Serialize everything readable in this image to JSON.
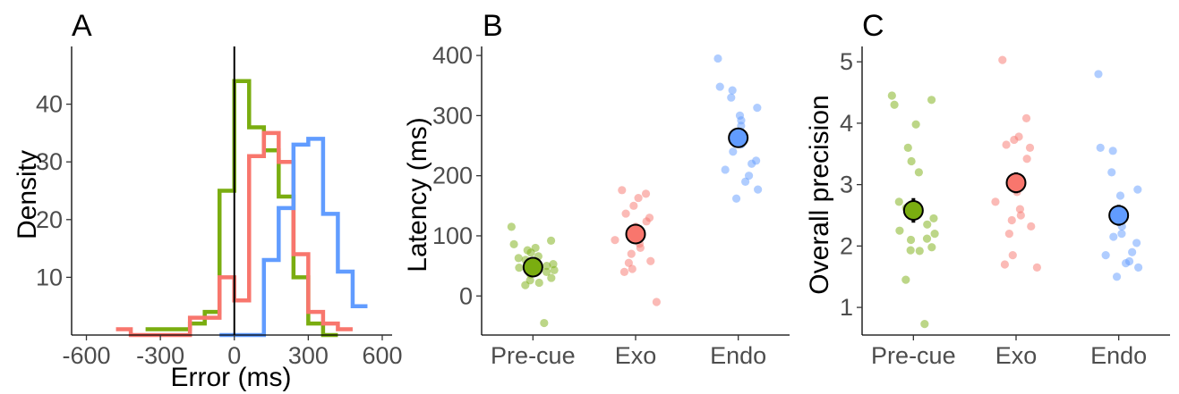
{
  "colors": {
    "Pre-cue": "#7aad10",
    "Exo": "#f8766d",
    "Endo": "#619cff"
  },
  "chart_data": [
    {
      "type": "step-histogram",
      "panel_label": "A",
      "xlabel": "Error (ms)",
      "ylabel": "Density",
      "xlim": [
        -660,
        640
      ],
      "ylim": [
        0,
        50
      ],
      "xticks": [
        -600,
        -300,
        0,
        300,
        600
      ],
      "yticks": [
        10,
        20,
        30,
        40
      ],
      "vline_x": 0,
      "bin_width": 60,
      "series": [
        {
          "group": "Pre-cue",
          "bins": [
            [
              -360,
              1
            ],
            [
              -300,
              1
            ],
            [
              -240,
              1
            ],
            [
              -180,
              2
            ],
            [
              -120,
              4
            ],
            [
              -60,
              25
            ],
            [
              0,
              44
            ],
            [
              60,
              36
            ],
            [
              120,
              32
            ],
            [
              180,
              24
            ],
            [
              240,
              10
            ],
            [
              300,
              2
            ],
            [
              360,
              0
            ]
          ]
        },
        {
          "group": "Exo",
          "bins": [
            [
              -480,
              1
            ],
            [
              -420,
              0
            ],
            [
              -360,
              0
            ],
            [
              -300,
              0
            ],
            [
              -240,
              0
            ],
            [
              -180,
              3
            ],
            [
              -120,
              3
            ],
            [
              -60,
              10
            ],
            [
              0,
              6
            ],
            [
              60,
              31
            ],
            [
              120,
              35
            ],
            [
              180,
              30
            ],
            [
              240,
              14
            ],
            [
              300,
              4
            ],
            [
              360,
              2
            ],
            [
              420,
              1
            ]
          ]
        },
        {
          "group": "Endo",
          "bins": [
            [
              -60,
              0
            ],
            [
              0,
              0
            ],
            [
              60,
              0
            ],
            [
              120,
              13
            ],
            [
              180,
              22
            ],
            [
              240,
              33
            ],
            [
              300,
              34
            ],
            [
              360,
              21
            ],
            [
              420,
              11
            ],
            [
              480,
              5
            ]
          ]
        }
      ]
    },
    {
      "type": "strip-with-mean",
      "panel_label": "B",
      "xlabel": "",
      "ylabel": "Latency (ms)",
      "categories": [
        "Pre-cue",
        "Exo",
        "Endo"
      ],
      "ylim": [
        -65,
        415
      ],
      "yticks": [
        0,
        100,
        200,
        300,
        400
      ],
      "groups": [
        {
          "name": "Pre-cue",
          "mean": 48,
          "se": 6,
          "points": [
            115,
            92,
            86,
            80,
            76,
            72,
            66,
            63,
            60,
            57,
            53,
            50,
            47,
            43,
            40,
            36,
            30,
            26,
            22,
            18,
            -45
          ]
        },
        {
          "name": "Exo",
          "mean": 103,
          "se": 9,
          "points": [
            176,
            170,
            163,
            150,
            137,
            130,
            124,
            115,
            108,
            100,
            93,
            87,
            80,
            70,
            58,
            55,
            45,
            40,
            -10
          ]
        },
        {
          "name": "Endo",
          "mean": 263,
          "se": 11,
          "points": [
            395,
            348,
            342,
            330,
            313,
            300,
            292,
            283,
            265,
            252,
            240,
            225,
            220,
            210,
            200,
            190,
            177,
            162
          ]
        }
      ]
    },
    {
      "type": "strip-with-mean",
      "panel_label": "C",
      "xlabel": "",
      "ylabel": "Overall precision",
      "categories": [
        "Pre-cue",
        "Exo",
        "Endo"
      ],
      "ylim": [
        0.55,
        5.25
      ],
      "yticks": [
        1,
        2,
        3,
        4,
        5
      ],
      "groups": [
        {
          "name": "Pre-cue",
          "mean": 2.58,
          "se": 0.2,
          "points": [
            4.45,
            4.38,
            4.3,
            3.98,
            3.6,
            3.38,
            3.2,
            2.72,
            2.62,
            2.52,
            2.45,
            2.35,
            2.25,
            2.2,
            2.12,
            2.1,
            1.98,
            1.93,
            1.92,
            1.45,
            0.73
          ]
        },
        {
          "name": "Exo",
          "mean": 3.03,
          "se": 0.17,
          "points": [
            5.03,
            4.08,
            3.78,
            3.73,
            3.65,
            3.6,
            3.42,
            3.05,
            2.98,
            2.88,
            2.72,
            2.6,
            2.5,
            2.42,
            2.32,
            2.2,
            1.85,
            1.7,
            1.65
          ]
        },
        {
          "name": "Endo",
          "mean": 2.5,
          "se": 0.17,
          "points": [
            4.8,
            3.6,
            3.55,
            3.2,
            2.92,
            2.82,
            2.55,
            2.45,
            2.32,
            2.2,
            2.15,
            2.05,
            1.9,
            1.85,
            1.75,
            1.72,
            1.65,
            1.5
          ]
        }
      ]
    }
  ]
}
